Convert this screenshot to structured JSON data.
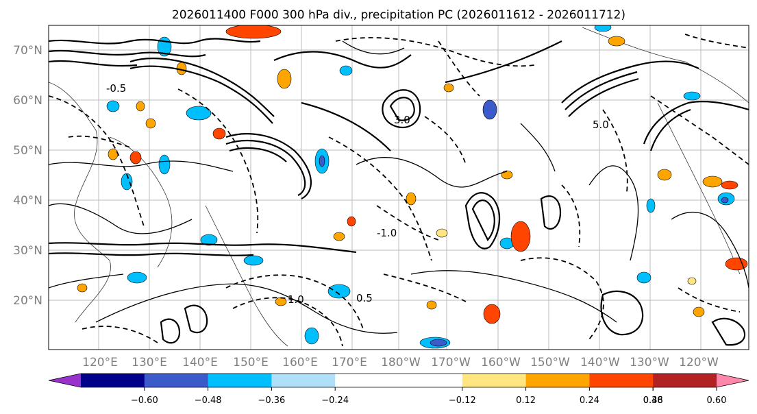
{
  "title": "2026011400 F000 300 hPa div., precipitation PC (2026011612 - 2026011712)",
  "map": {
    "lat_labels": [
      "70°N",
      "60°N",
      "50°N",
      "40°N",
      "30°N",
      "20°N"
    ],
    "lon_labels": [
      "120°E",
      "130°E",
      "140°E",
      "150°E",
      "160°E",
      "170°E",
      "180°W",
      "170°W",
      "160°W",
      "150°W",
      "140°W",
      "130°W",
      "120°W"
    ],
    "contour_labels": [
      "5.0",
      "0.5",
      "-0.5",
      "1.0",
      "-1.0",
      "3.0"
    ]
  },
  "colorbar": {
    "colors": [
      "#9932cc",
      "#00008b",
      "#3a5bc9",
      "#00bfff",
      "#b0e0f8",
      "#ffffff",
      "#ffffff",
      "#ffe680",
      "#ffa500",
      "#ff4500",
      "#b22222",
      "#ff88aa"
    ],
    "tick_labels": [
      "-0.60",
      "-0.48",
      "-0.36",
      "-0.24",
      "-0.12",
      "0.12",
      "0.24",
      "0.36",
      "0.48",
      "0.60"
    ]
  }
}
